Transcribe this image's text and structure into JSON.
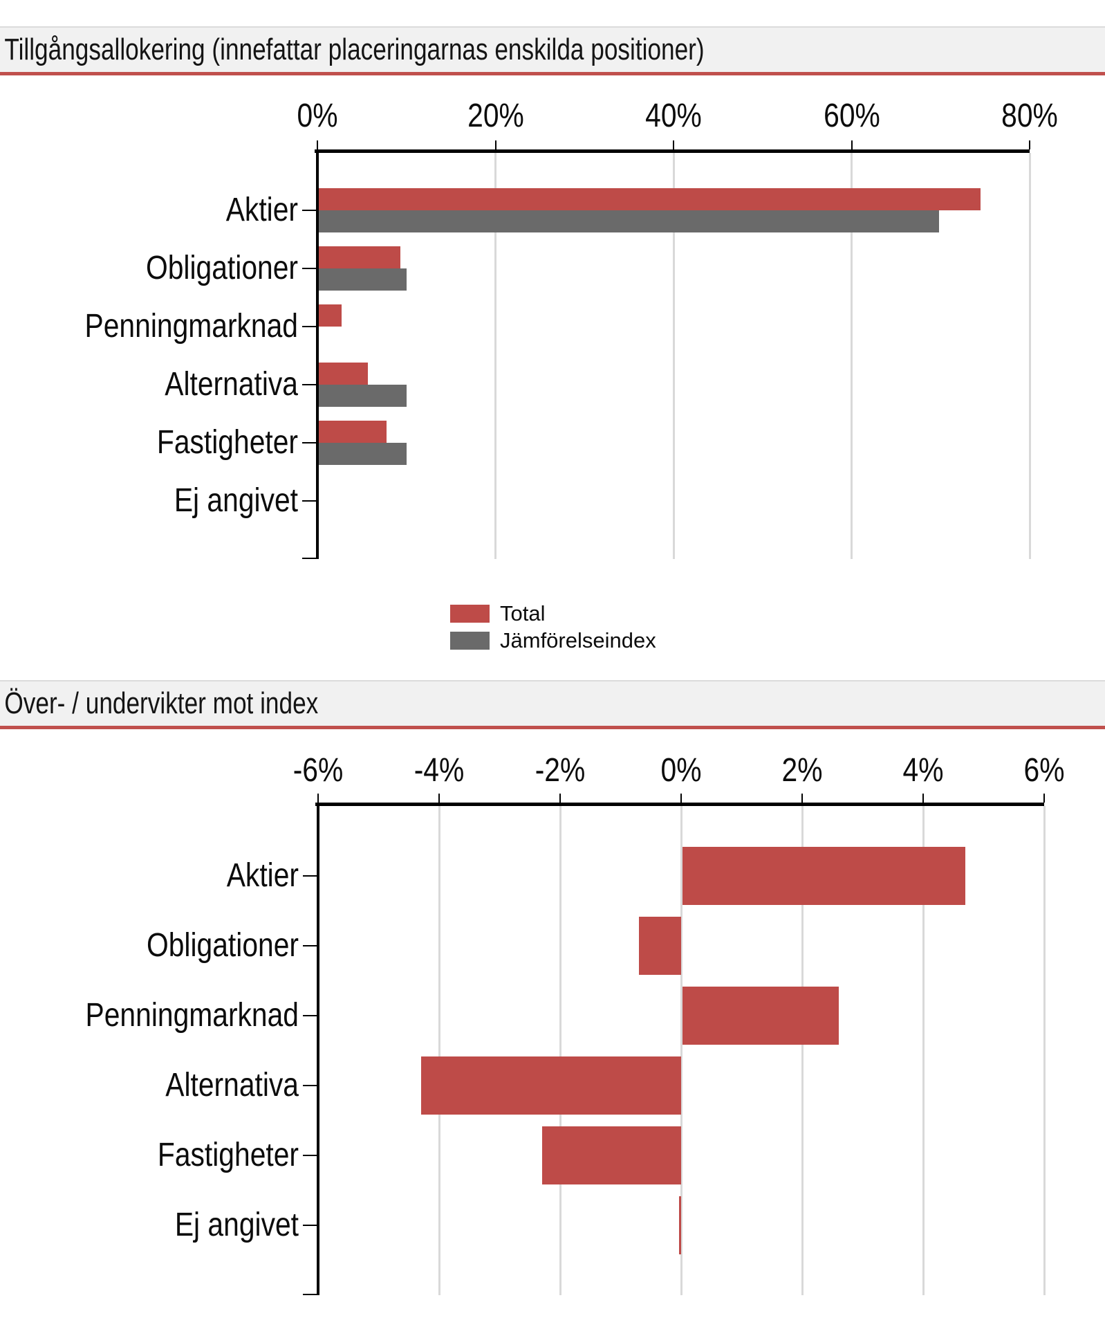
{
  "colors": {
    "total_series": "#BE4B48",
    "index_series": "#6A6A6A",
    "title_rule": "#C0504D",
    "title_background": "#F1F1F1",
    "gridline": "#D9D9D9",
    "axis": "#000000"
  },
  "chart_data": [
    {
      "type": "bar",
      "orientation": "horizontal",
      "title": "Tillgångsallokering (innefattar placeringarnas enskilda positioner)",
      "categories": [
        "Aktier",
        "Obligationer",
        "Penningmarknad",
        "Alternativa",
        "Fastigheter",
        "Ej angivet"
      ],
      "series": [
        {
          "name": "Total",
          "color": "#BE4B48",
          "values": [
            74.5,
            9.3,
            2.7,
            5.7,
            7.8,
            0
          ]
        },
        {
          "name": "Jämförelseindex",
          "color": "#6A6A6A",
          "values": [
            69.8,
            10.0,
            0,
            10.0,
            10.0,
            0
          ]
        }
      ],
      "xlim": [
        0,
        80
      ],
      "ticks": [
        0,
        20,
        40,
        60,
        80
      ],
      "tick_labels": [
        "0%",
        "20%",
        "40%",
        "60%",
        "80%"
      ],
      "axis_position": "top",
      "grid": true,
      "legend_position": "bottom-center"
    },
    {
      "type": "bar",
      "orientation": "horizontal",
      "title": "Över- / undervikter mot index",
      "categories": [
        "Aktier",
        "Obligationer",
        "Penningmarknad",
        "Alternativa",
        "Fastigheter",
        "Ej angivet"
      ],
      "series": [
        {
          "name": "Total",
          "color": "#BE4B48",
          "values": [
            4.7,
            -0.7,
            2.6,
            -4.3,
            -2.3,
            -0.03
          ]
        }
      ],
      "xlim": [
        -6,
        6
      ],
      "ticks": [
        -6,
        -4,
        -2,
        0,
        2,
        4,
        6
      ],
      "tick_labels": [
        "-6%",
        "-4%",
        "-2%",
        "0%",
        "2%",
        "4%",
        "6%"
      ],
      "axis_position": "top",
      "grid": true,
      "legend_position": "none"
    }
  ]
}
